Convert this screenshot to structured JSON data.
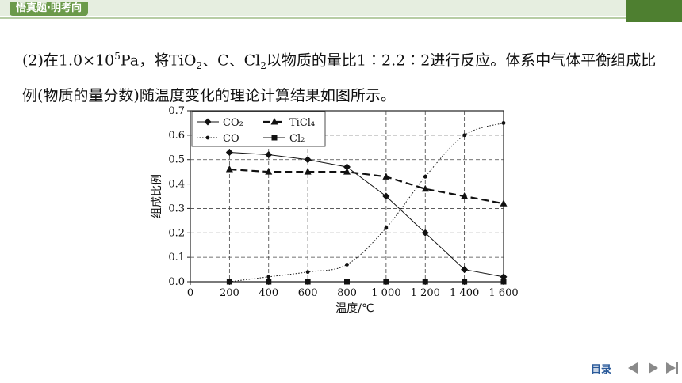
{
  "header": {
    "tag": "悟真题·明考向"
  },
  "paragraph": {
    "part1": "(2)在1.0×10",
    "sup1": "5",
    "part2": "Pa，将TiO",
    "sub1": "2",
    "part3": "、C、Cl",
    "sub2": "2",
    "part4": "以物质的量比1∶2.2∶2进行反应。体系中气体平衡组成比例(物质的量分数)随温度变化的理论计算结果如图所示。"
  },
  "chart_data": {
    "type": "line",
    "xlabel": "温度/℃",
    "ylabel": "组成比例",
    "xlim": [
      0,
      1600
    ],
    "ylim": [
      0,
      0.7
    ],
    "x_ticks": [
      "0",
      "200",
      "400",
      "600",
      "800",
      "1 000",
      "1 200",
      "1 400",
      "1 600"
    ],
    "y_ticks": [
      "0.0",
      "0.1",
      "0.2",
      "0.3",
      "0.4",
      "0.5",
      "0.6",
      "0.7"
    ],
    "x": [
      200,
      400,
      600,
      800,
      1000,
      1200,
      1400,
      1600
    ],
    "grid": true,
    "legend_position": "top-left",
    "series": [
      {
        "name": "CO₂",
        "marker": "diamond",
        "line": "solid",
        "values": [
          0.53,
          0.52,
          0.5,
          0.47,
          0.35,
          0.2,
          0.05,
          0.02
        ]
      },
      {
        "name": "TiCl₄",
        "marker": "triangle",
        "line": "long-dash",
        "values": [
          0.46,
          0.45,
          0.45,
          0.45,
          0.43,
          0.38,
          0.35,
          0.32
        ]
      },
      {
        "name": "CO",
        "marker": "dot",
        "line": "dotted",
        "values": [
          0.0,
          0.02,
          0.04,
          0.07,
          0.22,
          0.43,
          0.6,
          0.65
        ]
      },
      {
        "name": "Cl₂",
        "marker": "square",
        "line": "solid",
        "values": [
          0.0,
          0.0,
          0.0,
          0.0,
          0.0,
          0.0,
          0.0,
          0.0
        ]
      }
    ]
  },
  "nav": {
    "toc_label": "目录"
  }
}
